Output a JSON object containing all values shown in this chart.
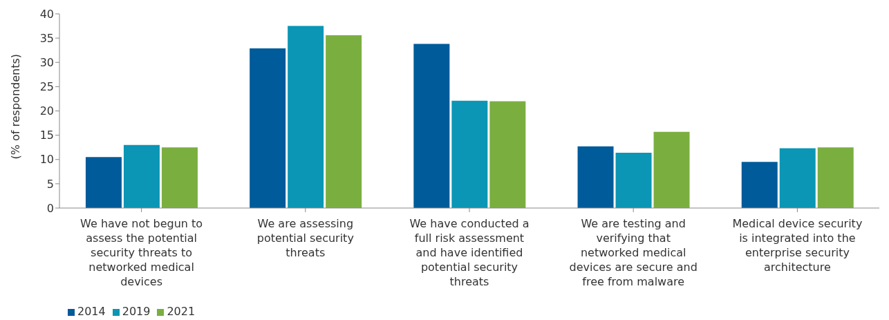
{
  "chart_data": {
    "type": "bar",
    "ylabel": "(% of respondents)",
    "categories": [
      "We have not begun to assess the potential security threats to networked medical devices",
      "We are assessing potential security threats",
      "We have conducted a full risk assessment and have identified potential security threats",
      "We are testing and verifying that networked medical devices are secure and free from malware",
      "Medical device security is integrated into the enterprise security architecture"
    ],
    "series": [
      {
        "name": "2014",
        "color": "#005b9a",
        "values": [
          10.5,
          32.9,
          33.8,
          12.7,
          9.5
        ]
      },
      {
        "name": "2019",
        "color": "#0b96b5",
        "values": [
          13.0,
          37.5,
          22.1,
          11.4,
          12.3
        ]
      },
      {
        "name": "2021",
        "color": "#7aaf40",
        "values": [
          12.5,
          35.6,
          22.0,
          15.7,
          12.5
        ]
      }
    ],
    "ylim": [
      0,
      40
    ],
    "yticks": [
      0,
      5,
      10,
      15,
      20,
      25,
      30,
      35,
      40
    ],
    "grid": false,
    "legend": "bottom left"
  }
}
